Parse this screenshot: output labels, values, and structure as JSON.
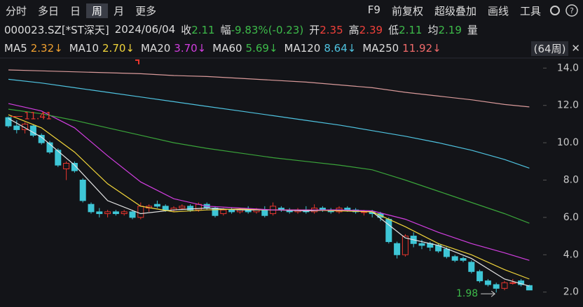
{
  "toolbar": {
    "periods": [
      "分时",
      "多日",
      "日",
      "周",
      "月",
      "更多"
    ],
    "active": "周",
    "tools": [
      "F9",
      "前复权",
      "超级叠加",
      "画线",
      "工具"
    ]
  },
  "quote": {
    "symbol": "000023.SZ[*ST深天]",
    "date": "2024/06/04",
    "items": [
      {
        "label": "收",
        "value": "2.11",
        "color": "#3dbb4a"
      },
      {
        "label": "幅",
        "value": "-9.83%(-0.23)",
        "color": "#3dbb4a"
      },
      {
        "label": "开",
        "value": "2.35",
        "color": "#f0403a"
      },
      {
        "label": "高",
        "value": "2.39",
        "color": "#f0403a"
      },
      {
        "label": "低",
        "value": "2.11",
        "color": "#3dbb4a"
      },
      {
        "label": "均",
        "value": "2.19",
        "color": "#3dbb4a"
      }
    ],
    "volume_label": "量"
  },
  "chart_data": {
    "type": "candlestick",
    "period_label": "(64周)",
    "up_color": "#e8362e",
    "down_color": "#3ec6d6",
    "ohlc": [
      [
        11.35,
        11.41,
        10.8,
        10.9
      ],
      [
        10.9,
        11.2,
        10.5,
        10.7
      ],
      [
        10.7,
        11.1,
        10.5,
        11.0
      ],
      [
        10.9,
        11.0,
        10.3,
        10.4
      ],
      [
        10.4,
        10.5,
        9.9,
        10.0
      ],
      [
        10.0,
        10.1,
        9.4,
        9.5
      ],
      [
        9.6,
        9.7,
        8.7,
        8.8
      ],
      [
        8.6,
        9.0,
        8.0,
        8.9
      ],
      [
        8.9,
        9.0,
        8.4,
        8.5
      ],
      [
        8.0,
        8.1,
        6.8,
        6.9
      ],
      [
        6.7,
        6.8,
        6.2,
        6.3
      ],
      [
        6.3,
        6.5,
        6.0,
        6.2
      ],
      [
        6.2,
        6.4,
        6.0,
        6.3
      ],
      [
        6.3,
        6.4,
        6.1,
        6.2
      ],
      [
        6.2,
        6.4,
        6.1,
        6.3
      ],
      [
        6.3,
        6.4,
        5.9,
        6.0
      ],
      [
        6.0,
        6.8,
        5.9,
        6.6
      ],
      [
        6.5,
        6.7,
        6.3,
        6.6
      ],
      [
        6.7,
        6.9,
        6.5,
        6.6
      ],
      [
        6.6,
        6.7,
        6.3,
        6.4
      ],
      [
        6.4,
        6.6,
        6.3,
        6.5
      ],
      [
        6.5,
        6.7,
        6.4,
        6.6
      ],
      [
        6.6,
        6.7,
        6.3,
        6.4
      ],
      [
        6.4,
        6.8,
        6.3,
        6.7
      ],
      [
        6.7,
        6.8,
        6.4,
        6.5
      ],
      [
        6.5,
        6.6,
        6.0,
        6.1
      ],
      [
        6.2,
        6.5,
        6.1,
        6.4
      ],
      [
        6.4,
        6.5,
        6.2,
        6.3
      ],
      [
        6.3,
        6.5,
        6.2,
        6.4
      ],
      [
        6.4,
        6.6,
        6.2,
        6.3
      ],
      [
        6.3,
        6.5,
        6.2,
        6.4
      ],
      [
        6.4,
        6.6,
        6.0,
        6.1
      ],
      [
        6.2,
        6.8,
        6.1,
        6.6
      ],
      [
        6.5,
        6.6,
        6.3,
        6.4
      ],
      [
        6.4,
        6.5,
        6.2,
        6.3
      ],
      [
        6.3,
        6.5,
        6.2,
        6.4
      ],
      [
        6.4,
        6.6,
        6.2,
        6.3
      ],
      [
        6.3,
        6.7,
        6.2,
        6.5
      ],
      [
        6.5,
        6.6,
        6.3,
        6.4
      ],
      [
        6.4,
        6.5,
        6.2,
        6.3
      ],
      [
        6.3,
        6.6,
        6.2,
        6.5
      ],
      [
        6.5,
        6.6,
        6.3,
        6.4
      ],
      [
        6.4,
        6.5,
        6.2,
        6.3
      ],
      [
        6.3,
        6.4,
        6.1,
        6.3
      ],
      [
        6.3,
        6.4,
        6.0,
        6.2
      ],
      [
        6.2,
        6.3,
        5.8,
        6.0
      ],
      [
        5.9,
        6.0,
        4.6,
        4.7
      ],
      [
        4.6,
        4.7,
        3.8,
        4.0
      ],
      [
        4.0,
        5.1,
        3.9,
        5.0
      ],
      [
        5.0,
        5.2,
        4.4,
        4.6
      ],
      [
        4.6,
        4.8,
        4.3,
        4.5
      ],
      [
        4.6,
        4.7,
        4.2,
        4.4
      ],
      [
        4.5,
        4.6,
        4.1,
        4.2
      ],
      [
        4.3,
        4.4,
        3.8,
        3.9
      ],
      [
        3.9,
        4.0,
        3.6,
        3.7
      ],
      [
        3.8,
        3.9,
        3.6,
        3.7
      ],
      [
        3.6,
        3.7,
        3.0,
        3.1
      ],
      [
        3.1,
        3.2,
        2.5,
        2.6
      ],
      [
        2.6,
        2.7,
        2.3,
        2.4
      ],
      [
        2.4,
        2.5,
        1.98,
        2.2
      ],
      [
        2.2,
        2.6,
        2.1,
        2.5
      ],
      [
        2.5,
        2.7,
        2.4,
        2.5
      ],
      [
        2.6,
        2.7,
        2.3,
        2.4
      ],
      [
        2.35,
        2.39,
        2.11,
        2.11
      ]
    ],
    "ma_x": [
      0,
      4,
      8,
      12,
      16,
      20,
      24,
      28,
      32,
      36,
      40,
      44,
      48,
      52,
      56,
      60,
      63
    ],
    "series": [
      {
        "name": "MA5",
        "color": "#e6e6e6",
        "label_color": "#f0a030",
        "legend_value": "2.32↓",
        "values": [
          11.3,
          10.3,
          8.8,
          6.9,
          6.2,
          6.4,
          6.5,
          6.4,
          6.4,
          6.35,
          6.4,
          6.3,
          4.9,
          4.5,
          3.8,
          2.7,
          2.32
        ]
      },
      {
        "name": "MA10",
        "color": "#f0d43a",
        "label_color": "#f0d43a",
        "legend_value": "2.70↓",
        "values": [
          11.5,
          10.8,
          9.5,
          7.8,
          6.6,
          6.3,
          6.4,
          6.45,
          6.4,
          6.4,
          6.35,
          6.3,
          5.5,
          4.6,
          4.0,
          3.2,
          2.7
        ]
      },
      {
        "name": "MA20",
        "color": "#d23ee0",
        "label_color": "#d23ee0",
        "legend_value": "3.70↓",
        "values": [
          12.1,
          11.7,
          10.8,
          9.3,
          7.9,
          7.0,
          6.6,
          6.5,
          6.4,
          6.4,
          6.4,
          6.35,
          5.9,
          5.2,
          4.6,
          4.1,
          3.7
        ]
      },
      {
        "name": "MA60",
        "color": "#3aa43a",
        "label_color": "#3dbb4a",
        "legend_value": "5.69↓",
        "values": [
          11.8,
          11.55,
          11.2,
          10.8,
          10.4,
          10.0,
          9.7,
          9.45,
          9.2,
          9.0,
          8.8,
          8.55,
          8.0,
          7.4,
          6.8,
          6.2,
          5.69
        ]
      },
      {
        "name": "MA120",
        "color": "#4fc3e0",
        "label_color": "#4fc3e0",
        "legend_value": "8.64↓",
        "values": [
          13.4,
          13.2,
          12.95,
          12.7,
          12.45,
          12.2,
          11.95,
          11.7,
          11.45,
          11.2,
          10.95,
          10.65,
          10.35,
          10.0,
          9.6,
          9.1,
          8.64
        ]
      },
      {
        "name": "MA250",
        "color": "#d99a9a",
        "label_color": "#f06a6a",
        "legend_value": "11.92↓",
        "values": [
          13.9,
          13.85,
          13.8,
          13.75,
          13.7,
          13.6,
          13.55,
          13.45,
          13.35,
          13.25,
          13.1,
          12.95,
          12.7,
          12.5,
          12.3,
          12.05,
          11.92
        ]
      }
    ],
    "ylim": [
      1.35,
      14.35
    ],
    "yticks": [
      {
        "value": 2,
        "label": "2.0"
      },
      {
        "value": 4,
        "label": "4.0"
      },
      {
        "value": 6,
        "label": "6.0"
      },
      {
        "value": 8,
        "label": "8.0"
      },
      {
        "value": 10,
        "label": "10.0"
      },
      {
        "value": 12,
        "label": "12.0"
      },
      {
        "value": 14,
        "label": "14.0"
      }
    ],
    "annotations": {
      "high": "11.41",
      "low": "1.98"
    }
  }
}
